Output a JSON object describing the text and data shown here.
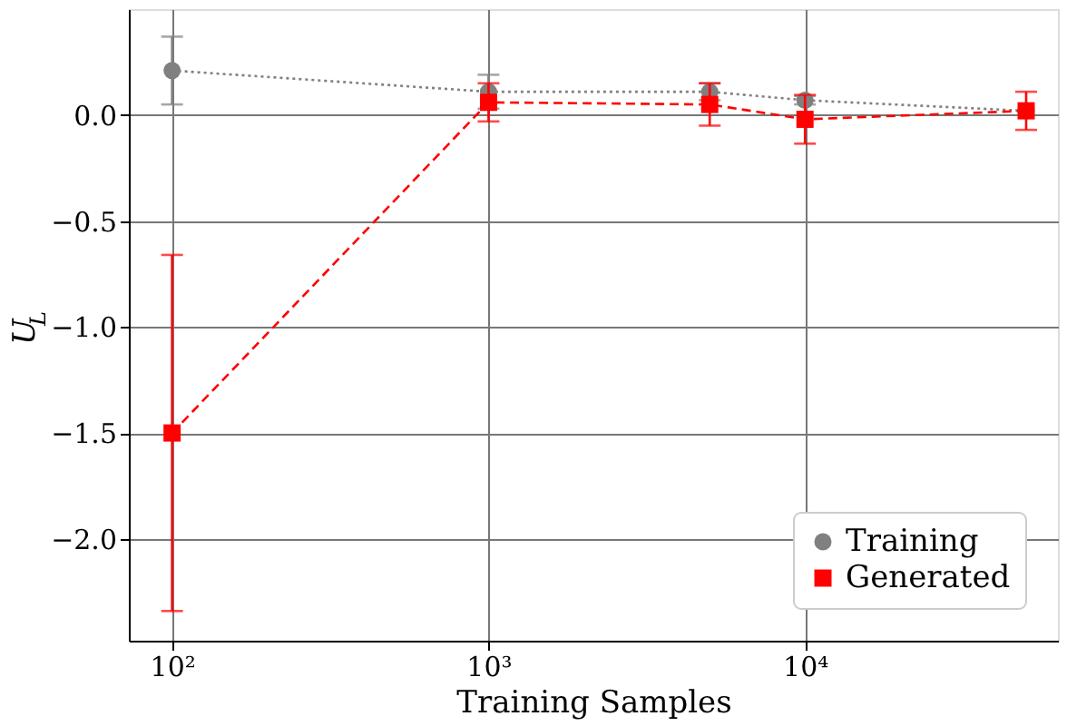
{
  "chart_data": {
    "type": "line",
    "xlabel": "Training Samples",
    "ylabel": "U$_{L}$",
    "log": "x",
    "x": [
      100,
      1000,
      5000,
      10000,
      50000
    ],
    "xlim": [
      73,
      63000
    ],
    "xticks": [
      {
        "value": 100,
        "label": "10²"
      },
      {
        "value": 1000,
        "label": "10³"
      },
      {
        "value": 10000,
        "label": "10⁴"
      }
    ],
    "ylim": [
      -2.48,
      0.5
    ],
    "yticks": [
      {
        "value": -2.0,
        "label": "−2.0"
      },
      {
        "value": -1.5,
        "label": "−1.5"
      },
      {
        "value": -1.0,
        "label": "−1.0"
      },
      {
        "value": -0.5,
        "label": "−0.5"
      },
      {
        "value": 0.0,
        "label": "0.0"
      }
    ],
    "grid": true,
    "legend": "bottom right",
    "series": [
      {
        "name": "Training",
        "color": "#808080",
        "marker": "circle",
        "line_style": "dotted",
        "values": [
          0.21,
          0.11,
          0.11,
          0.07,
          0.02
        ],
        "errors": [
          0.16,
          0.08,
          0.04,
          0.02,
          null
        ]
      },
      {
        "name": "Generated",
        "color": "#ff0000",
        "marker": "square",
        "line_style": "dashed",
        "values": [
          -1.5,
          0.06,
          0.05,
          -0.02,
          0.02
        ],
        "errors": [
          0.84,
          0.09,
          0.1,
          0.115,
          0.09
        ]
      }
    ]
  }
}
